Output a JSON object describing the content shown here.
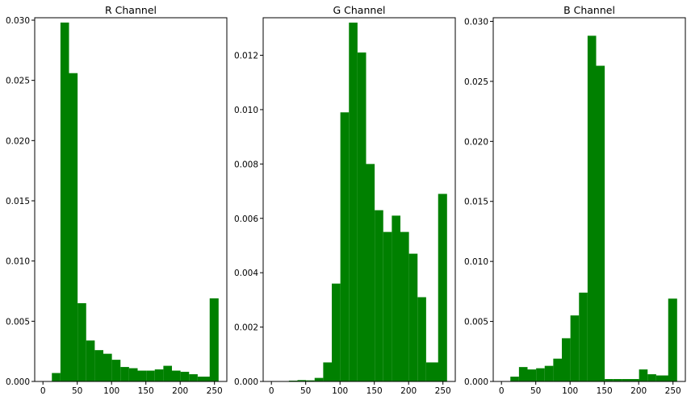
{
  "bar_color": "#008000",
  "chart_data": [
    {
      "type": "bar",
      "title": "R Channel",
      "xlabel": "",
      "ylabel": "",
      "xlim": [
        -12,
        268
      ],
      "ylim": [
        0,
        0.0302
      ],
      "xticks": [
        0,
        50,
        100,
        150,
        200,
        250
      ],
      "xtick_labels": [
        "0",
        "50",
        "100",
        "150",
        "200",
        "250"
      ],
      "yticks": [
        0,
        0.005,
        0.01,
        0.015,
        0.02,
        0.025,
        0.03
      ],
      "ytick_labels": [
        "0.000",
        "0.005",
        "0.010",
        "0.015",
        "0.020",
        "0.025",
        "0.030"
      ],
      "bins": [
        [
          13,
          25.5
        ],
        [
          25.5,
          38
        ],
        [
          38,
          50.5
        ],
        [
          50.5,
          63
        ],
        [
          63,
          75.5
        ],
        [
          75.5,
          88
        ],
        [
          88,
          100.5
        ],
        [
          100.5,
          113
        ],
        [
          113,
          125.5
        ],
        [
          125.5,
          138
        ],
        [
          138,
          150.5
        ],
        [
          150.5,
          163
        ],
        [
          163,
          175.5
        ],
        [
          175.5,
          188
        ],
        [
          188,
          200.5
        ],
        [
          200.5,
          213
        ],
        [
          213,
          225.5
        ],
        [
          225.5,
          238
        ],
        [
          238,
          250.5
        ],
        [
          243,
          256
        ]
      ],
      "values": [
        0.0007,
        0.0298,
        0.0256,
        0.0065,
        0.0034,
        0.0026,
        0.0023,
        0.0018,
        0.0012,
        0.0011,
        0.0009,
        0.0009,
        0.001,
        0.0013,
        0.0009,
        0.0008,
        0.0006,
        0.0004,
        0.0004,
        0.0069
      ],
      "grid": false,
      "legend": "none"
    },
    {
      "type": "bar",
      "title": "G Channel",
      "xlabel": "",
      "ylabel": "",
      "xlim": [
        -12,
        268
      ],
      "ylim": [
        0,
        0.01338
      ],
      "xticks": [
        0,
        50,
        100,
        150,
        200,
        250
      ],
      "xtick_labels": [
        "0",
        "50",
        "100",
        "150",
        "200",
        "250"
      ],
      "yticks": [
        0,
        0.002,
        0.004,
        0.006,
        0.008,
        0.01,
        0.012
      ],
      "ytick_labels": [
        "0.000",
        "0.002",
        "0.004",
        "0.006",
        "0.008",
        "0.010",
        "0.012"
      ],
      "bins": [
        [
          25.5,
          38
        ],
        [
          38,
          50.5
        ],
        [
          50.5,
          63
        ],
        [
          63,
          75.5
        ],
        [
          75.5,
          88
        ],
        [
          88,
          100.5
        ],
        [
          100.5,
          113
        ],
        [
          113,
          125.5
        ],
        [
          125.5,
          138
        ],
        [
          138,
          150.5
        ],
        [
          150.5,
          163
        ],
        [
          163,
          175.5
        ],
        [
          175.5,
          188
        ],
        [
          188,
          200.5
        ],
        [
          200.5,
          213
        ],
        [
          213,
          225.5
        ],
        [
          225.5,
          238
        ],
        [
          238,
          250.5
        ],
        [
          243,
          256
        ]
      ],
      "values": [
        3e-05,
        5e-05,
        4e-05,
        0.00013,
        0.0007,
        0.0036,
        0.0099,
        0.0132,
        0.0121,
        0.008,
        0.0063,
        0.0055,
        0.0061,
        0.0055,
        0.0047,
        0.0031,
        0.0007,
        0.0007,
        0.0069
      ],
      "grid": false,
      "legend": "none"
    },
    {
      "type": "bar",
      "title": "B Channel",
      "xlabel": "",
      "ylabel": "",
      "xlim": [
        -12,
        268
      ],
      "ylim": [
        0,
        0.0303
      ],
      "xticks": [
        0,
        50,
        100,
        150,
        200,
        250
      ],
      "xtick_labels": [
        "0",
        "50",
        "100",
        "150",
        "200",
        "250"
      ],
      "yticks": [
        0,
        0.005,
        0.01,
        0.015,
        0.02,
        0.025,
        0.03
      ],
      "ytick_labels": [
        "0.000",
        "0.005",
        "0.010",
        "0.015",
        "0.020",
        "0.025",
        "0.030"
      ],
      "bins": [
        [
          13,
          25.5
        ],
        [
          25.5,
          38
        ],
        [
          38,
          50.5
        ],
        [
          50.5,
          63
        ],
        [
          63,
          75.5
        ],
        [
          75.5,
          88
        ],
        [
          88,
          100.5
        ],
        [
          100.5,
          113
        ],
        [
          113,
          125.5
        ],
        [
          125.5,
          138
        ],
        [
          138,
          150.5
        ],
        [
          150.5,
          163
        ],
        [
          163,
          175.5
        ],
        [
          175.5,
          188
        ],
        [
          188,
          200.5
        ],
        [
          200.5,
          213
        ],
        [
          213,
          225.5
        ],
        [
          225.5,
          238
        ],
        [
          238,
          250.5
        ],
        [
          243,
          256
        ]
      ],
      "values": [
        0.0004,
        0.0012,
        0.001,
        0.0011,
        0.0013,
        0.0019,
        0.0036,
        0.0055,
        0.0074,
        0.0288,
        0.0263,
        0.0002,
        0.0002,
        0.0002,
        0.0002,
        0.001,
        0.0006,
        0.0005,
        0.0005,
        0.0069
      ],
      "grid": false,
      "legend": "none"
    }
  ]
}
